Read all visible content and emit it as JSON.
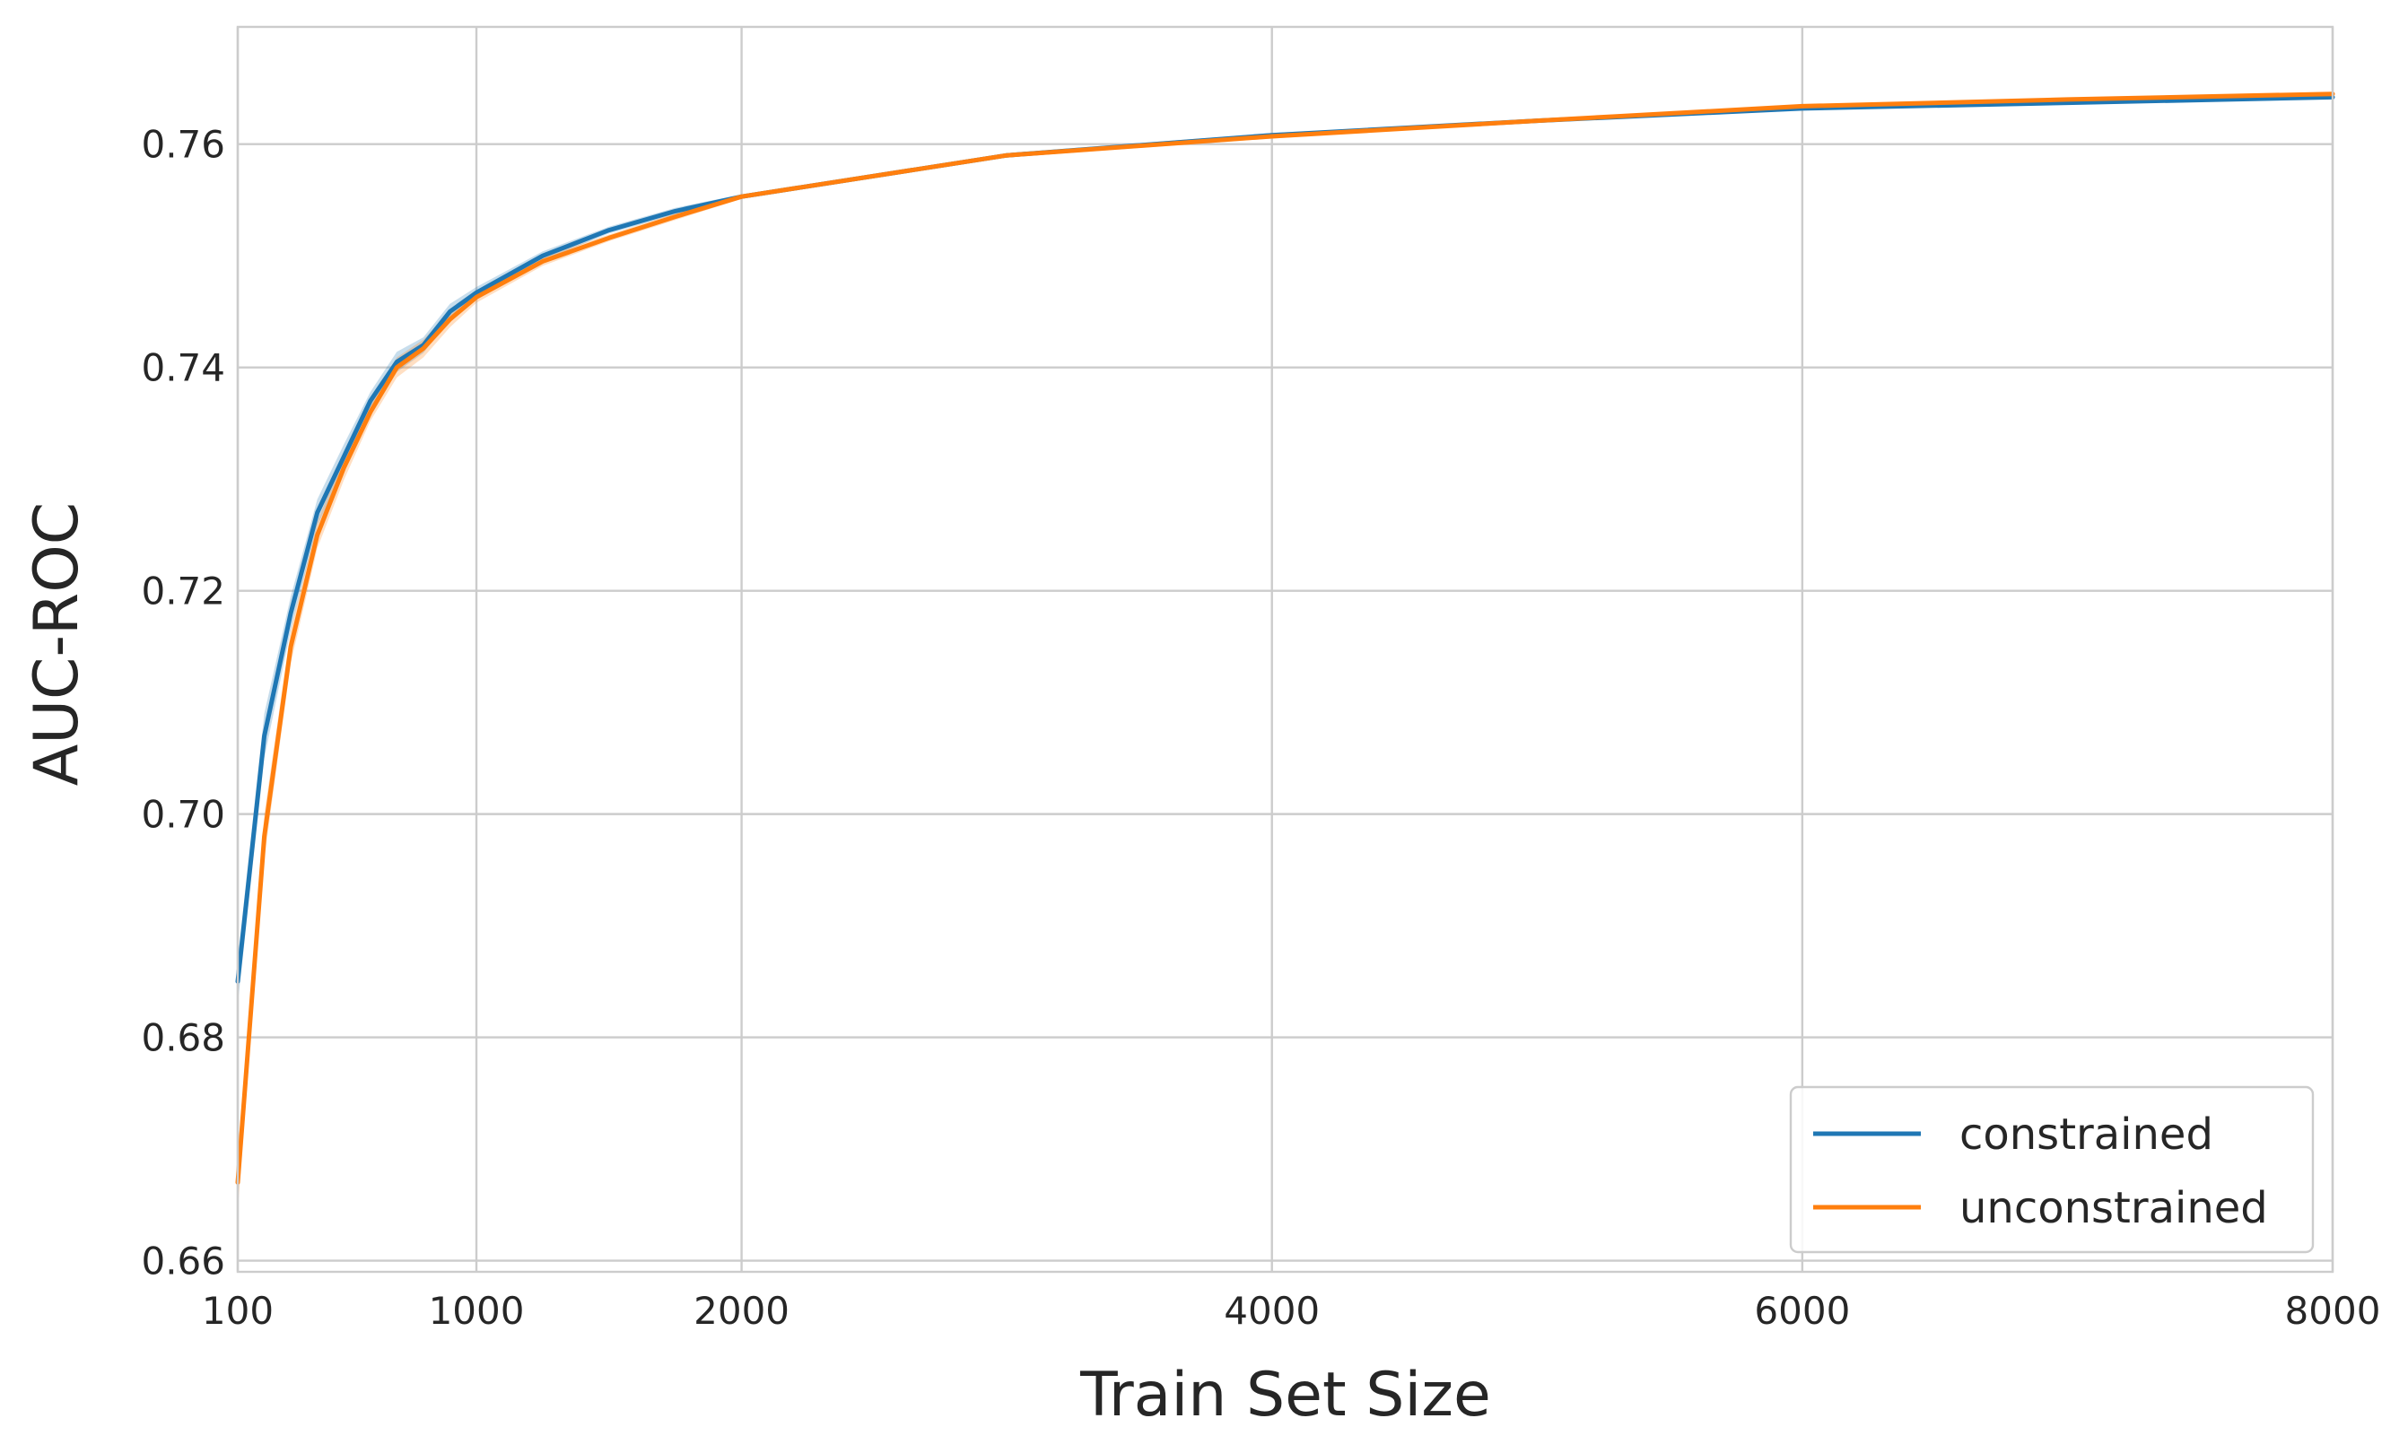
{
  "chart_data": {
    "type": "line",
    "xlabel": "Train Set Size",
    "ylabel": "AUC-ROC",
    "xlim": [
      100,
      8000
    ],
    "ylim": [
      0.659,
      0.7705
    ],
    "xticks": [
      100,
      1000,
      2000,
      4000,
      6000,
      8000
    ],
    "xtick_labels": [
      "100",
      "1000",
      "2000",
      "4000",
      "6000",
      "8000"
    ],
    "yticks": [
      0.66,
      0.68,
      0.7,
      0.72,
      0.74,
      0.76
    ],
    "ytick_labels": [
      "0.66",
      "0.68",
      "0.70",
      "0.72",
      "0.74",
      "0.76"
    ],
    "grid": true,
    "legend_position": "lower-right",
    "series": [
      {
        "name": "constrained",
        "color": "#1f77b4",
        "band_color": "#1f77b4",
        "x": [
          100,
          200,
          300,
          400,
          500,
          600,
          700,
          800,
          900,
          1000,
          1250,
          1500,
          1750,
          2000,
          3000,
          4000,
          5000,
          6000,
          7000,
          8000
        ],
        "y": [
          0.685,
          0.707,
          0.718,
          0.727,
          0.732,
          0.737,
          0.7405,
          0.742,
          0.745,
          0.7467,
          0.75,
          0.7523,
          0.754,
          0.7553,
          0.759,
          0.7608,
          0.7621,
          0.7632,
          0.7637,
          0.7642
        ],
        "lower": [
          0.683,
          0.705,
          0.7165,
          0.7258,
          0.7309,
          0.7362,
          0.7396,
          0.7413,
          0.7443,
          0.7462,
          0.7496,
          0.752,
          0.7537,
          0.7551,
          0.7588,
          0.7606,
          0.762,
          0.7631,
          0.7636,
          0.7641
        ],
        "upper": [
          0.687,
          0.709,
          0.7195,
          0.7282,
          0.7331,
          0.7378,
          0.7414,
          0.7427,
          0.7457,
          0.7472,
          0.7504,
          0.7526,
          0.7543,
          0.7555,
          0.7592,
          0.761,
          0.7622,
          0.7633,
          0.7638,
          0.7643
        ]
      },
      {
        "name": "unconstrained",
        "color": "#ff7f0e",
        "band_color": "#ff7f0e",
        "x": [
          100,
          200,
          300,
          400,
          500,
          600,
          700,
          800,
          900,
          1000,
          1250,
          1500,
          1750,
          2000,
          3000,
          4000,
          5000,
          6000,
          7000,
          8000
        ],
        "y": [
          0.667,
          0.698,
          0.715,
          0.725,
          0.731,
          0.736,
          0.74,
          0.7417,
          0.7443,
          0.7463,
          0.7495,
          0.7516,
          0.7535,
          0.7553,
          0.759,
          0.7607,
          0.7621,
          0.7634,
          0.764,
          0.7645
        ],
        "lower": [
          0.6645,
          0.696,
          0.7135,
          0.7238,
          0.7299,
          0.7352,
          0.7391,
          0.7409,
          0.7436,
          0.7458,
          0.7491,
          0.7513,
          0.7532,
          0.7551,
          0.7588,
          0.7605,
          0.762,
          0.7633,
          0.7639,
          0.7644
        ],
        "upper": [
          0.6695,
          0.7,
          0.7165,
          0.7262,
          0.7321,
          0.7368,
          0.7409,
          0.7425,
          0.745,
          0.7468,
          0.7499,
          0.7519,
          0.7538,
          0.7555,
          0.7592,
          0.7609,
          0.7622,
          0.7635,
          0.7641,
          0.7646
        ]
      }
    ]
  }
}
